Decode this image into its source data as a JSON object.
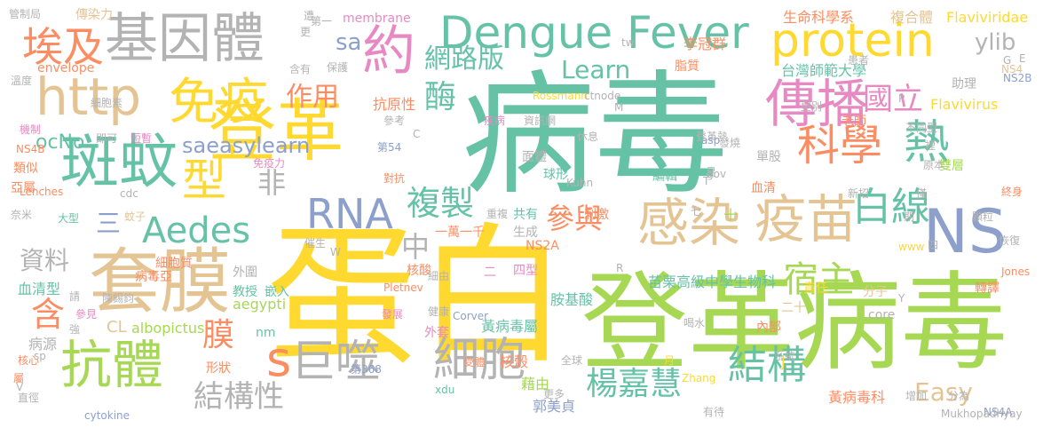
{
  "colors": {
    "green": "#66c2a5",
    "orange": "#fc8d62",
    "blue": "#8da0cb",
    "pink": "#e78ac3",
    "lime": "#a6d854",
    "yellow": "#ffd92f",
    "tan": "#e5c494",
    "gray": "#b3b3b3"
  },
  "words": [
    {
      "text": "病毒",
      "color": "green"
    },
    {
      "text": "蛋白",
      "color": "yellow"
    },
    {
      "text": "登革病毒",
      "color": "lime"
    },
    {
      "text": "登革",
      "color": "yellow"
    },
    {
      "text": "Dengue Fever",
      "color": "green"
    },
    {
      "text": "protein",
      "color": "yellow"
    },
    {
      "text": "基因體",
      "color": "gray"
    },
    {
      "text": "套膜",
      "color": "tan"
    },
    {
      "text": "斑蚊",
      "color": "green"
    },
    {
      "text": "抗體",
      "color": "lime"
    },
    {
      "text": "疫苗",
      "color": "tan"
    },
    {
      "text": "http",
      "color": "tan"
    },
    {
      "text": "免疫",
      "color": "yellow"
    },
    {
      "text": "傳播",
      "color": "pink"
    },
    {
      "text": "感染",
      "color": "tan"
    },
    {
      "text": "約",
      "color": "pink"
    },
    {
      "text": "熱",
      "color": "green"
    },
    {
      "text": "科學",
      "color": "orange"
    },
    {
      "text": "NS",
      "color": "blue"
    },
    {
      "text": "細胞",
      "color": "gray"
    },
    {
      "text": "巨噬",
      "color": "gray"
    },
    {
      "text": "型",
      "color": "yellow"
    },
    {
      "text": "埃及",
      "color": "orange"
    },
    {
      "text": "RNA",
      "color": "blue"
    },
    {
      "text": "國立",
      "color": "pink"
    },
    {
      "text": "白線",
      "color": "green"
    },
    {
      "text": "結構",
      "color": "green"
    },
    {
      "text": "s",
      "color": "orange"
    },
    {
      "text": "Aedes",
      "color": "green"
    },
    {
      "text": "複製",
      "color": "green"
    },
    {
      "text": "宿主",
      "color": "lime"
    },
    {
      "text": "網路版",
      "color": "green"
    },
    {
      "text": "作用",
      "color": "orange"
    },
    {
      "text": "參與",
      "color": "orange"
    },
    {
      "text": "楊嘉慧",
      "color": "green"
    },
    {
      "text": "結構性",
      "color": "gray"
    },
    {
      "text": "Learn",
      "color": "green"
    },
    {
      "text": "酶",
      "color": "green"
    },
    {
      "text": "膜",
      "color": "orange"
    },
    {
      "text": "含",
      "color": "orange"
    },
    {
      "text": "中",
      "color": "gray"
    },
    {
      "text": "Easy",
      "color": "tan"
    },
    {
      "text": "資料",
      "color": "gray"
    },
    {
      "text": "ylib",
      "color": "gray"
    },
    {
      "text": "非",
      "color": "gray"
    },
    {
      "text": "saeasylearn",
      "color": "blue"
    },
    {
      "text": "三",
      "color": "blue"
    },
    {
      "text": "sa",
      "color": "blue"
    },
    {
      "text": "ocNo",
      "color": "green"
    },
    {
      "text": "台灣師範大學",
      "color": "green"
    },
    {
      "text": "生命科學系",
      "color": "orange"
    },
    {
      "text": "複合體",
      "color": "tan"
    },
    {
      "text": "Flaviviridae",
      "color": "yellow"
    },
    {
      "text": "Flavivirus",
      "color": "yellow"
    },
    {
      "text": "李冠群",
      "color": "orange"
    },
    {
      "text": "脂質",
      "color": "orange"
    },
    {
      "text": "苗栗高級中學生物科",
      "color": "green"
    },
    {
      "text": "黃病毒屬",
      "color": "green"
    },
    {
      "text": "黃病毒科",
      "color": "orange"
    },
    {
      "text": "郭美貞",
      "color": "blue"
    },
    {
      "text": "aegypti",
      "color": "lime"
    },
    {
      "text": "albopictus",
      "color": "lime"
    },
    {
      "text": "membrane",
      "color": "pink"
    },
    {
      "text": "envelope",
      "color": "orange"
    },
    {
      "text": "抗原性",
      "color": "orange"
    },
    {
      "text": "血清型",
      "color": "green"
    },
    {
      "text": "教授",
      "color": "green"
    },
    {
      "text": "嵌入",
      "color": "green"
    },
    {
      "text": "外圍",
      "color": "gray"
    },
    {
      "text": "病源",
      "color": "gray"
    },
    {
      "text": "核殼",
      "color": "orange"
    },
    {
      "text": "藉由",
      "color": "lime"
    },
    {
      "text": "胺基酸",
      "color": "green"
    },
    {
      "text": "責任",
      "color": "yellow"
    },
    {
      "text": "分子",
      "color": "tan"
    },
    {
      "text": "core",
      "color": "gray"
    },
    {
      "text": "轉譯",
      "color": "orange"
    },
    {
      "text": "內部",
      "color": "orange"
    },
    {
      "text": "老師",
      "color": "orange"
    },
    {
      "text": "雙層",
      "color": "lime"
    },
    {
      "text": "血清",
      "color": "orange"
    },
    {
      "text": "編輯",
      "color": "green"
    },
    {
      "text": "球形",
      "color": "green"
    },
    {
      "text": "刺激",
      "color": "orange"
    },
    {
      "text": "共有",
      "color": "green"
    },
    {
      "text": "面體",
      "color": "gray"
    },
    {
      "text": "細胞質",
      "color": "orange"
    },
    {
      "text": "細胞素",
      "color": "gray"
    },
    {
      "text": "傳染力",
      "color": "tan"
    },
    {
      "text": "保護",
      "color": "gray"
    },
    {
      "text": "含有",
      "color": "gray"
    },
    {
      "text": "類似",
      "color": "orange"
    },
    {
      "text": "亞屬",
      "color": "orange"
    },
    {
      "text": "大型",
      "color": "green"
    },
    {
      "text": "短暫",
      "color": "pink"
    },
    {
      "text": "即可",
      "color": "gray"
    },
    {
      "text": "形狀",
      "color": "orange"
    },
    {
      "text": "外套",
      "color": "pink"
    },
    {
      "text": "核酸",
      "color": "orange"
    },
    {
      "text": "生成",
      "color": "gray"
    },
    {
      "text": "一萬一千",
      "color": "orange"
    },
    {
      "text": "NS2A",
      "color": "orange"
    },
    {
      "text": "NS2B",
      "color": "blue"
    },
    {
      "text": "NS4A",
      "color": "blue"
    },
    {
      "text": "NS4B",
      "color": "orange"
    },
    {
      "text": "NS4",
      "color": "tan"
    },
    {
      "text": "Jones",
      "color": "orange"
    },
    {
      "text": "Zhang",
      "color": "yellow"
    },
    {
      "text": "Corver",
      "color": "blue"
    },
    {
      "text": "Pletnev",
      "color": "orange"
    },
    {
      "text": "Rossmann",
      "color": "yellow"
    },
    {
      "text": "ctnode",
      "color": "gray"
    },
    {
      "text": "Mukhopadhyay",
      "color": "gray"
    },
    {
      "text": "cytokine",
      "color": "blue"
    },
    {
      "text": "Lenches",
      "color": "orange"
    },
    {
      "text": "Kuhn",
      "color": "gray"
    },
    {
      "text": "二",
      "color": "pink"
    },
    {
      "text": "四型",
      "color": "pink"
    },
    {
      "text": "二十",
      "color": "tan"
    },
    {
      "text": "CL",
      "color": "tan"
    },
    {
      "text": "nm",
      "color": "green"
    },
    {
      "text": "單股",
      "color": "gray"
    },
    {
      "text": "助理",
      "color": "gray"
    },
    {
      "text": "型別",
      "color": "gray"
    },
    {
      "text": "不同型",
      "color": "gray"
    },
    {
      "text": "裡",
      "color": "gray"
    },
    {
      "text": "原本",
      "color": "gray"
    },
    {
      "text": "終身",
      "color": "orange"
    },
    {
      "text": "顆粒",
      "color": "gray"
    },
    {
      "text": "恢復",
      "color": "gray"
    },
    {
      "text": "增加",
      "color": "gray"
    },
    {
      "text": "分為",
      "color": "gray"
    },
    {
      "text": "喝水",
      "color": "gray"
    },
    {
      "text": "系統",
      "color": "gray"
    },
    {
      "text": "健康",
      "color": "gray"
    },
    {
      "text": "發燒",
      "color": "gray"
    },
    {
      "text": "重複",
      "color": "gray"
    },
    {
      "text": "病毒亞",
      "color": "orange"
    },
    {
      "text": "陳錫鈞",
      "color": "gray"
    },
    {
      "text": "管制局",
      "color": "gray"
    },
    {
      "text": "溫度",
      "color": "gray"
    },
    {
      "text": "機制",
      "color": "pink"
    },
    {
      "text": "疾病",
      "color": "pink"
    },
    {
      "text": "資訊網",
      "color": "gray"
    },
    {
      "text": "休息",
      "color": "gray"
    },
    {
      "text": "第一",
      "color": "gray"
    },
    {
      "text": "第54",
      "color": "blue"
    },
    {
      "text": "第368",
      "color": "blue"
    },
    {
      "text": "遭",
      "color": "gray"
    },
    {
      "text": "更",
      "color": "gray"
    },
    {
      "text": "患者",
      "color": "gray"
    },
    {
      "text": "免疫力",
      "color": "pink"
    },
    {
      "text": "對抗",
      "color": "orange"
    },
    {
      "text": "奈米",
      "color": "gray"
    },
    {
      "text": "蚊子",
      "color": "tan"
    },
    {
      "text": "催生",
      "color": "gray"
    },
    {
      "text": "參見",
      "color": "pink"
    },
    {
      "text": "直徑",
      "color": "gray"
    },
    {
      "text": "核心",
      "color": "orange"
    },
    {
      "text": "屬",
      "color": "orange"
    },
    {
      "text": "強",
      "color": "gray"
    },
    {
      "text": "請",
      "color": "gray"
    },
    {
      "text": "細由",
      "color": "gray"
    },
    {
      "text": "發展",
      "color": "pink"
    },
    {
      "text": "受體",
      "color": "orange"
    },
    {
      "text": "全球",
      "color": "gray"
    },
    {
      "text": "更多",
      "color": "gray"
    },
    {
      "text": "有待",
      "color": "gray"
    },
    {
      "text": "新招",
      "color": "gray"
    },
    {
      "text": "僅",
      "color": "gray"
    },
    {
      "text": "期",
      "color": "gray"
    },
    {
      "text": "七",
      "color": "gray"
    },
    {
      "text": "十",
      "color": "lime"
    },
    {
      "text": "四",
      "color": "gray"
    },
    {
      "text": "月",
      "color": "yellow"
    },
    {
      "text": "易",
      "color": "gray"
    },
    {
      "text": "登革熱",
      "color": "gray"
    },
    {
      "text": "參考",
      "color": "gray"
    },
    {
      "text": "xdu",
      "color": "green"
    },
    {
      "text": "asp",
      "color": "blue"
    },
    {
      "text": "gov",
      "color": "gray"
    },
    {
      "text": "tw",
      "color": "gray"
    },
    {
      "text": "cdc",
      "color": "gray"
    },
    {
      "text": "www",
      "color": "yellow"
    },
    {
      "text": "sp",
      "color": "gray"
    },
    {
      "text": "M",
      "color": "gray"
    },
    {
      "text": "R",
      "color": "gray"
    },
    {
      "text": "W",
      "color": "gray"
    },
    {
      "text": "T",
      "color": "gray"
    },
    {
      "text": "P",
      "color": "gray"
    },
    {
      "text": "E",
      "color": "gray"
    },
    {
      "text": "G",
      "color": "gray"
    },
    {
      "text": "V",
      "color": "gray"
    },
    {
      "text": "Y",
      "color": "gray"
    },
    {
      "text": "J",
      "color": "yellow"
    },
    {
      "text": "C",
      "color": "gray"
    }
  ]
}
